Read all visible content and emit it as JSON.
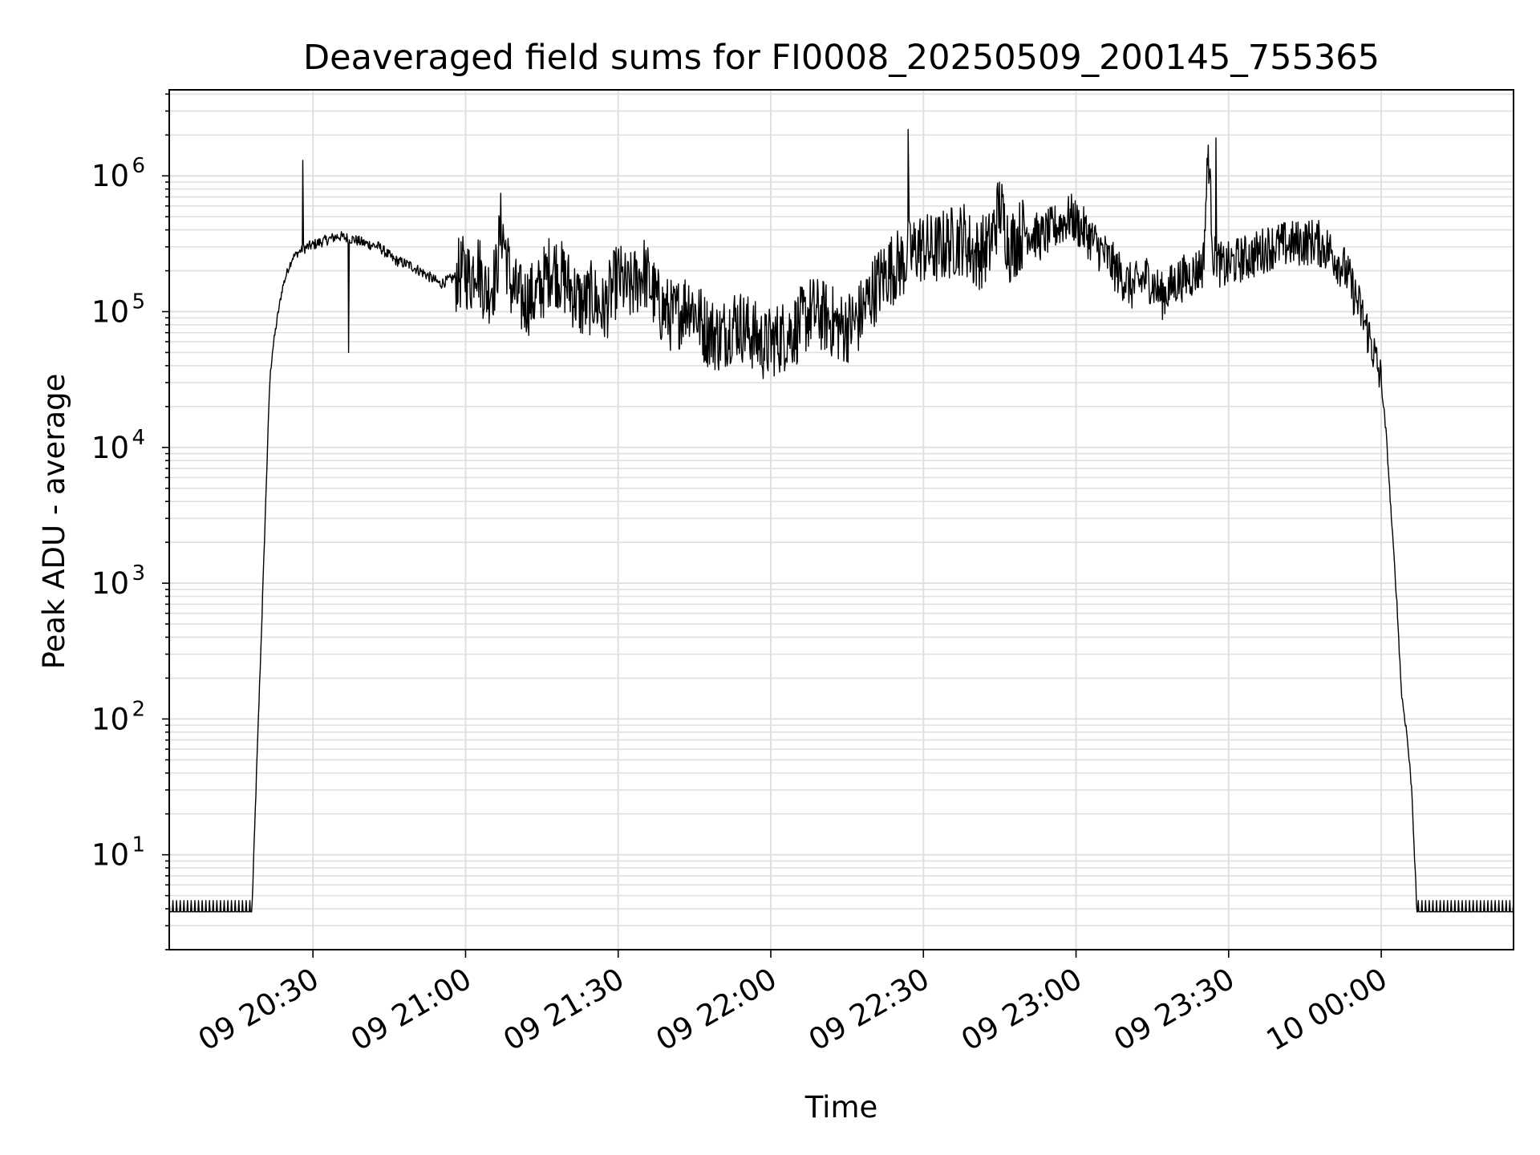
{
  "chart_data": {
    "type": "line",
    "title": "Deaveraged field sums for FI0008_20250509_200145_755365",
    "xlabel": "Time",
    "ylabel": "Peak ADU - average",
    "yscale": "log",
    "ylim": [
      2,
      4300000
    ],
    "xlim": [
      "09 20:01:45",
      "09 00:26:00 next day"
    ],
    "x_range_minutes": [
      "20:01:45",
      "00:26:00"
    ],
    "grid": true,
    "line_color": "#000000",
    "grid_color": "#e0e0e0",
    "x_ticks": [
      {
        "label": "09 20:30",
        "minute": 1230
      },
      {
        "label": "09 21:00",
        "minute": 1260
      },
      {
        "label": "09 21:30",
        "minute": 1290
      },
      {
        "label": "09 22:00",
        "minute": 1320
      },
      {
        "label": "09 22:30",
        "minute": 1350
      },
      {
        "label": "09 23:00",
        "minute": 1380
      },
      {
        "label": "09 23:30",
        "minute": 1410
      },
      {
        "label": "10 00:00",
        "minute": 1440
      }
    ],
    "y_ticks": [
      {
        "base": "10",
        "exp": "1",
        "value": 10
      },
      {
        "base": "10",
        "exp": "2",
        "value": 100
      },
      {
        "base": "10",
        "exp": "3",
        "value": 1000
      },
      {
        "base": "10",
        "exp": "4",
        "value": 10000
      },
      {
        "base": "10",
        "exp": "5",
        "value": 100000
      },
      {
        "base": "10",
        "exp": "6",
        "value": 1000000
      }
    ],
    "series": [
      {
        "x_minutes": [
          1201.75,
          1214.0,
          1218.0,
          1219.0,
          1220.0,
          1220.8,
          1221.5,
          1222.0,
          1223.0,
          1224.0,
          1225.0,
          1226.0,
          1227.0,
          1228.0,
          1230.0,
          1232.0,
          1235.0,
          1238.0,
          1240.0,
          1243.0,
          1246.0,
          1249.0,
          1252.0,
          1255.0,
          1258.0,
          1260.0,
          1261.0,
          1262.0,
          1264.0,
          1266.0,
          1267.0,
          1269.0,
          1271.0,
          1274.0,
          1277.0,
          1280.0,
          1283.0,
          1285.0,
          1287.0,
          1290.0,
          1292.0,
          1295.0,
          1298.0,
          1301.0,
          1304.0,
          1307.0,
          1310.0,
          1313.0,
          1316.0,
          1319.0,
          1320.0,
          1322.0,
          1325.0,
          1328.0,
          1331.0,
          1334.0,
          1337.0,
          1340.0,
          1343.0,
          1346.0,
          1349.0,
          1352.0,
          1355.0,
          1358.0,
          1360.0,
          1363.0,
          1365.0,
          1367.0,
          1370.0,
          1373.0,
          1376.0,
          1379.0,
          1380.0,
          1382.0,
          1385.0,
          1388.0,
          1391.0,
          1394.0,
          1397.0,
          1400.0,
          1403.0,
          1405.0,
          1406.0,
          1407.0,
          1408.0,
          1409.0,
          1412.0,
          1415.0,
          1418.0,
          1421.0,
          1424.0,
          1427.0,
          1430.0,
          1433.0,
          1436.0,
          1438.0,
          1440.0,
          1441.0,
          1442.0,
          1443.0,
          1444.0,
          1445.0,
          1446.0,
          1447.0,
          1448.0,
          1448.5,
          1449.0,
          1450.0,
          1466.0
        ],
        "values": [
          3.8,
          3.8,
          3.8,
          50,
          600,
          5000,
          30000,
          50000,
          90000,
          150000,
          200000,
          250000,
          270000,
          290000,
          310000,
          330000,
          360000,
          340000,
          320000,
          300000,
          240000,
          220000,
          190000,
          160000,
          180000,
          200000,
          170000,
          250000,
          140000,
          180000,
          450000,
          150000,
          120000,
          130000,
          220000,
          160000,
          110000,
          130000,
          100000,
          180000,
          140000,
          200000,
          110000,
          90000,
          120000,
          75000,
          65000,
          85000,
          70000,
          55000,
          60000,
          65000,
          75000,
          100000,
          90000,
          75000,
          85000,
          140000,
          200000,
          230000,
          300000,
          280000,
          320000,
          350000,
          260000,
          300000,
          600000,
          300000,
          400000,
          350000,
          420000,
          500000,
          450000,
          380000,
          280000,
          200000,
          150000,
          180000,
          130000,
          170000,
          190000,
          220000,
          1600000,
          250000,
          230000,
          210000,
          240000,
          260000,
          300000,
          310000,
          320000,
          330000,
          280000,
          200000,
          100000,
          60000,
          30000,
          12000,
          3000,
          800,
          150,
          80,
          30,
          3.8,
          3.8,
          3.8,
          3.8,
          3.8,
          3.8
        ]
      }
    ],
    "spikes": [
      {
        "minute": 1228.0,
        "value": 1300000
      },
      {
        "minute": 1347.0,
        "value": 2200000
      },
      {
        "minute": 1407.5,
        "value": 1900000
      },
      {
        "minute": 1237.0,
        "value": 50000
      }
    ]
  }
}
